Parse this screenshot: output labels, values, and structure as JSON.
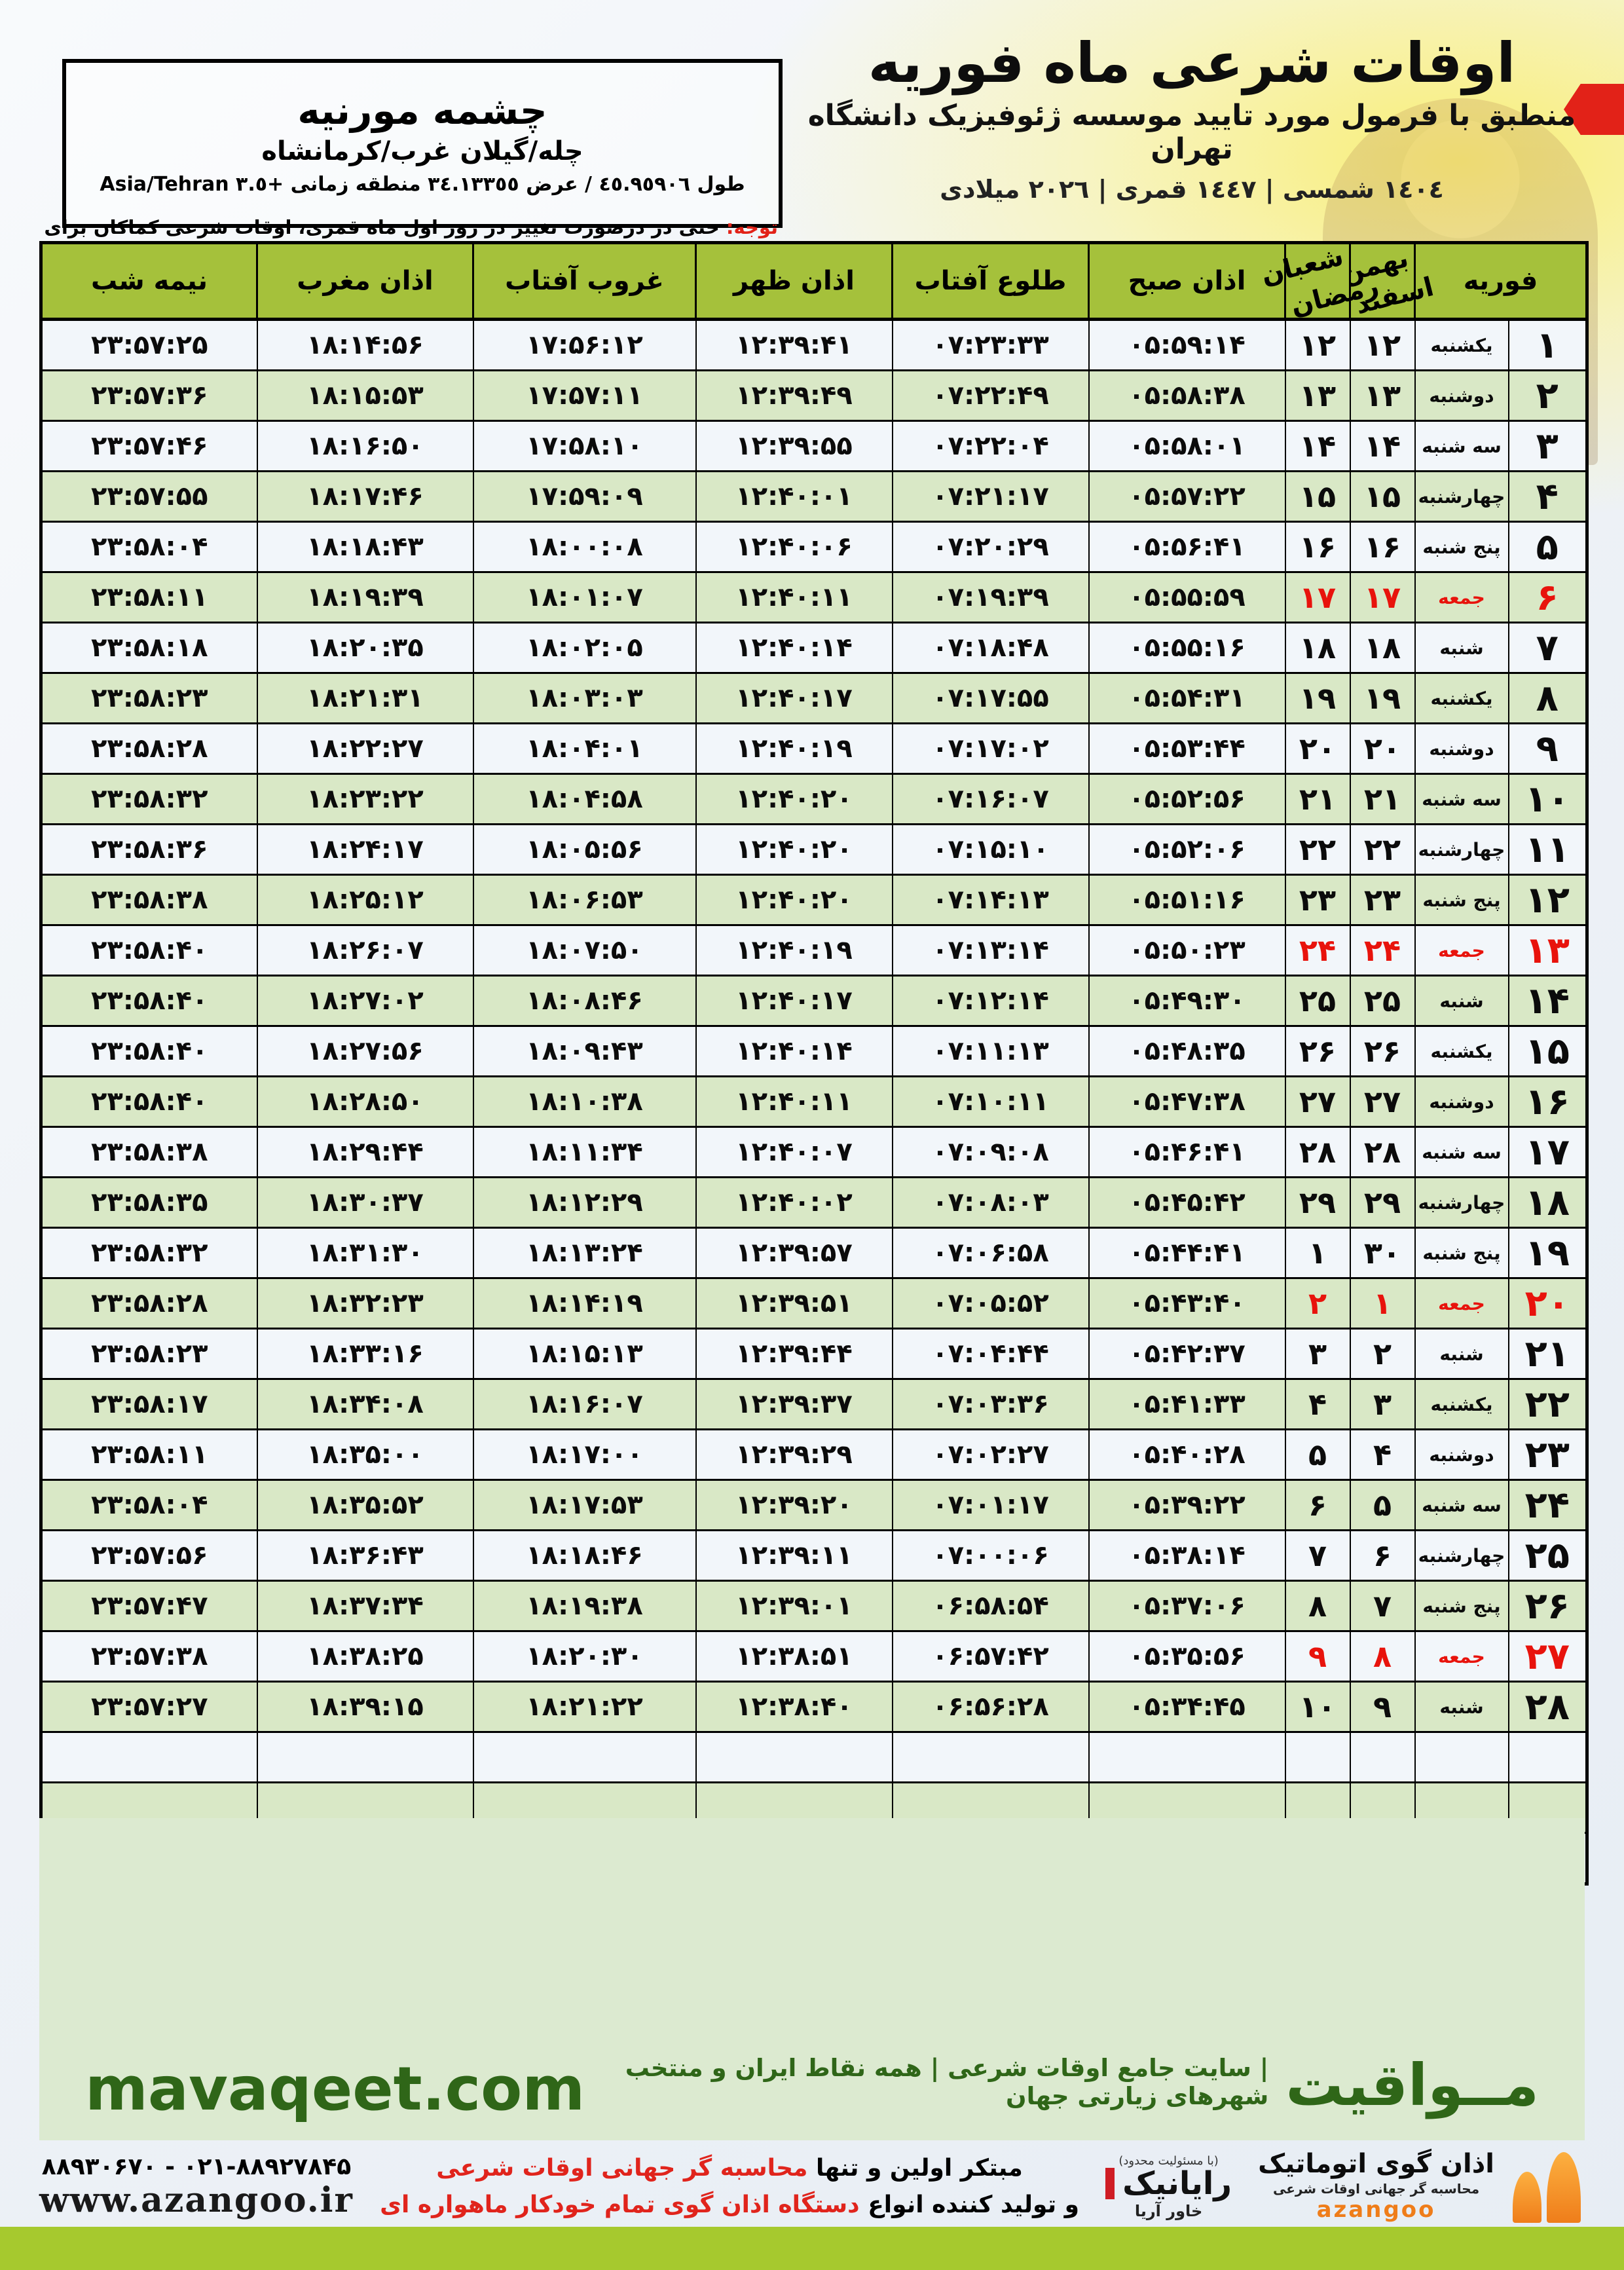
{
  "header": {
    "title": "اوقات شرعی ماه فوریه",
    "subtitle": "منطبق با فرمول مورد تایید موسسه ژئوفیزیک دانشگاه تهران",
    "years": "١٤٠٤ شمسی | ١٤٤٧ قمری | ٢٠٢٦ میلادی"
  },
  "location": {
    "name": "چشمه مورنیه",
    "region": "چله/گیلان غرب/کرمانشاه",
    "coords": "طول ٤٥.٩٥٩٠٦ / عرض ٣٤.١٣٣٥٥ منطقه زمانی +٣.٥ Asia/Tehran"
  },
  "note": {
    "label": "توجه:",
    "text": "حتی در درصورت تغییر در روز اول ماه قمری، اوقات شرعی کماکان برای روزهای شمسی و میلادی معتبر است."
  },
  "table": {
    "headers": {
      "february": "فوریه",
      "bahman": "بهمن",
      "esfand": "اسفند",
      "shaban": "شعبان",
      "ramadan": "رمضان",
      "fajr": "اذان صبح",
      "sunrise": "طلوع آفتاب",
      "dhuhr": "اذان ظهر",
      "sunset": "غروب آفتاب",
      "maghrib": "اذان مغرب",
      "midnight": "نیمه شب"
    },
    "empty_rows": 3,
    "rows": [
      {
        "day": "۱",
        "weekday": "یکشنبه",
        "jalali": "۱۲",
        "hijri": "۱۲",
        "fajr": "۰۵:۵۹:۱۴",
        "sunrise": "۰۷:۲۳:۳۳",
        "dhuhr": "۱۲:۳۹:۴۱",
        "sunset": "۱۷:۵۶:۱۲",
        "maghrib": "۱۸:۱۴:۵۶",
        "midnight": "۲۳:۵۷:۲۵",
        "friday": false
      },
      {
        "day": "۲",
        "weekday": "دوشنبه",
        "jalali": "۱۳",
        "hijri": "۱۳",
        "fajr": "۰۵:۵۸:۳۸",
        "sunrise": "۰۷:۲۲:۴۹",
        "dhuhr": "۱۲:۳۹:۴۹",
        "sunset": "۱۷:۵۷:۱۱",
        "maghrib": "۱۸:۱۵:۵۳",
        "midnight": "۲۳:۵۷:۳۶",
        "friday": false
      },
      {
        "day": "۳",
        "weekday": "سه شنبه",
        "jalali": "۱۴",
        "hijri": "۱۴",
        "fajr": "۰۵:۵۸:۰۱",
        "sunrise": "۰۷:۲۲:۰۴",
        "dhuhr": "۱۲:۳۹:۵۵",
        "sunset": "۱۷:۵۸:۱۰",
        "maghrib": "۱۸:۱۶:۵۰",
        "midnight": "۲۳:۵۷:۴۶",
        "friday": false
      },
      {
        "day": "۴",
        "weekday": "چهارشنبه",
        "jalali": "۱۵",
        "hijri": "۱۵",
        "fajr": "۰۵:۵۷:۲۲",
        "sunrise": "۰۷:۲۱:۱۷",
        "dhuhr": "۱۲:۴۰:۰۱",
        "sunset": "۱۷:۵۹:۰۹",
        "maghrib": "۱۸:۱۷:۴۶",
        "midnight": "۲۳:۵۷:۵۵",
        "friday": false
      },
      {
        "day": "۵",
        "weekday": "پنج شنبه",
        "jalali": "۱۶",
        "hijri": "۱۶",
        "fajr": "۰۵:۵۶:۴۱",
        "sunrise": "۰۷:۲۰:۲۹",
        "dhuhr": "۱۲:۴۰:۰۶",
        "sunset": "۱۸:۰۰:۰۸",
        "maghrib": "۱۸:۱۸:۴۳",
        "midnight": "۲۳:۵۸:۰۴",
        "friday": false
      },
      {
        "day": "۶",
        "weekday": "جمعه",
        "jalali": "۱۷",
        "hijri": "۱۷",
        "fajr": "۰۵:۵۵:۵۹",
        "sunrise": "۰۷:۱۹:۳۹",
        "dhuhr": "۱۲:۴۰:۱۱",
        "sunset": "۱۸:۰۱:۰۷",
        "maghrib": "۱۸:۱۹:۳۹",
        "midnight": "۲۳:۵۸:۱۱",
        "friday": true
      },
      {
        "day": "۷",
        "weekday": "شنبه",
        "jalali": "۱۸",
        "hijri": "۱۸",
        "fajr": "۰۵:۵۵:۱۶",
        "sunrise": "۰۷:۱۸:۴۸",
        "dhuhr": "۱۲:۴۰:۱۴",
        "sunset": "۱۸:۰۲:۰۵",
        "maghrib": "۱۸:۲۰:۳۵",
        "midnight": "۲۳:۵۸:۱۸",
        "friday": false
      },
      {
        "day": "۸",
        "weekday": "یکشنبه",
        "jalali": "۱۹",
        "hijri": "۱۹",
        "fajr": "۰۵:۵۴:۳۱",
        "sunrise": "۰۷:۱۷:۵۵",
        "dhuhr": "۱۲:۴۰:۱۷",
        "sunset": "۱۸:۰۳:۰۳",
        "maghrib": "۱۸:۲۱:۳۱",
        "midnight": "۲۳:۵۸:۲۳",
        "friday": false
      },
      {
        "day": "۹",
        "weekday": "دوشنبه",
        "jalali": "۲۰",
        "hijri": "۲۰",
        "fajr": "۰۵:۵۳:۴۴",
        "sunrise": "۰۷:۱۷:۰۲",
        "dhuhr": "۱۲:۴۰:۱۹",
        "sunset": "۱۸:۰۴:۰۱",
        "maghrib": "۱۸:۲۲:۲۷",
        "midnight": "۲۳:۵۸:۲۸",
        "friday": false
      },
      {
        "day": "۱۰",
        "weekday": "سه شنبه",
        "jalali": "۲۱",
        "hijri": "۲۱",
        "fajr": "۰۵:۵۲:۵۶",
        "sunrise": "۰۷:۱۶:۰۷",
        "dhuhr": "۱۲:۴۰:۲۰",
        "sunset": "۱۸:۰۴:۵۸",
        "maghrib": "۱۸:۲۳:۲۲",
        "midnight": "۲۳:۵۸:۳۲",
        "friday": false
      },
      {
        "day": "۱۱",
        "weekday": "چهارشنبه",
        "jalali": "۲۲",
        "hijri": "۲۲",
        "fajr": "۰۵:۵۲:۰۶",
        "sunrise": "۰۷:۱۵:۱۰",
        "dhuhr": "۱۲:۴۰:۲۰",
        "sunset": "۱۸:۰۵:۵۶",
        "maghrib": "۱۸:۲۴:۱۷",
        "midnight": "۲۳:۵۸:۳۶",
        "friday": false
      },
      {
        "day": "۱۲",
        "weekday": "پنج شنبه",
        "jalali": "۲۳",
        "hijri": "۲۳",
        "fajr": "۰۵:۵۱:۱۶",
        "sunrise": "۰۷:۱۴:۱۳",
        "dhuhr": "۱۲:۴۰:۲۰",
        "sunset": "۱۸:۰۶:۵۳",
        "maghrib": "۱۸:۲۵:۱۲",
        "midnight": "۲۳:۵۸:۳۸",
        "friday": false
      },
      {
        "day": "۱۳",
        "weekday": "جمعه",
        "jalali": "۲۴",
        "hijri": "۲۴",
        "fajr": "۰۵:۵۰:۲۳",
        "sunrise": "۰۷:۱۳:۱۴",
        "dhuhr": "۱۲:۴۰:۱۹",
        "sunset": "۱۸:۰۷:۵۰",
        "maghrib": "۱۸:۲۶:۰۷",
        "midnight": "۲۳:۵۸:۴۰",
        "friday": true
      },
      {
        "day": "۱۴",
        "weekday": "شنبه",
        "jalali": "۲۵",
        "hijri": "۲۵",
        "fajr": "۰۵:۴۹:۳۰",
        "sunrise": "۰۷:۱۲:۱۴",
        "dhuhr": "۱۲:۴۰:۱۷",
        "sunset": "۱۸:۰۸:۴۶",
        "maghrib": "۱۸:۲۷:۰۲",
        "midnight": "۲۳:۵۸:۴۰",
        "friday": false
      },
      {
        "day": "۱۵",
        "weekday": "یکشنبه",
        "jalali": "۲۶",
        "hijri": "۲۶",
        "fajr": "۰۵:۴۸:۳۵",
        "sunrise": "۰۷:۱۱:۱۳",
        "dhuhr": "۱۲:۴۰:۱۴",
        "sunset": "۱۸:۰۹:۴۳",
        "maghrib": "۱۸:۲۷:۵۶",
        "midnight": "۲۳:۵۸:۴۰",
        "friday": false
      },
      {
        "day": "۱۶",
        "weekday": "دوشنبه",
        "jalali": "۲۷",
        "hijri": "۲۷",
        "fajr": "۰۵:۴۷:۳۸",
        "sunrise": "۰۷:۱۰:۱۱",
        "dhuhr": "۱۲:۴۰:۱۱",
        "sunset": "۱۸:۱۰:۳۸",
        "maghrib": "۱۸:۲۸:۵۰",
        "midnight": "۲۳:۵۸:۴۰",
        "friday": false
      },
      {
        "day": "۱۷",
        "weekday": "سه شنبه",
        "jalali": "۲۸",
        "hijri": "۲۸",
        "fajr": "۰۵:۴۶:۴۱",
        "sunrise": "۰۷:۰۹:۰۸",
        "dhuhr": "۱۲:۴۰:۰۷",
        "sunset": "۱۸:۱۱:۳۴",
        "maghrib": "۱۸:۲۹:۴۴",
        "midnight": "۲۳:۵۸:۳۸",
        "friday": false
      },
      {
        "day": "۱۸",
        "weekday": "چهارشنبه",
        "jalali": "۲۹",
        "hijri": "۲۹",
        "fajr": "۰۵:۴۵:۴۲",
        "sunrise": "۰۷:۰۸:۰۳",
        "dhuhr": "۱۲:۴۰:۰۲",
        "sunset": "۱۸:۱۲:۲۹",
        "maghrib": "۱۸:۳۰:۳۷",
        "midnight": "۲۳:۵۸:۳۵",
        "friday": false
      },
      {
        "day": "۱۹",
        "weekday": "پنج شنبه",
        "jalali": "۳۰",
        "hijri": "۱",
        "fajr": "۰۵:۴۴:۴۱",
        "sunrise": "۰۷:۰۶:۵۸",
        "dhuhr": "۱۲:۳۹:۵۷",
        "sunset": "۱۸:۱۳:۲۴",
        "maghrib": "۱۸:۳۱:۳۰",
        "midnight": "۲۳:۵۸:۳۲",
        "friday": false
      },
      {
        "day": "۲۰",
        "weekday": "جمعه",
        "jalali": "۱",
        "hijri": "۲",
        "fajr": "۰۵:۴۳:۴۰",
        "sunrise": "۰۷:۰۵:۵۲",
        "dhuhr": "۱۲:۳۹:۵۱",
        "sunset": "۱۸:۱۴:۱۹",
        "maghrib": "۱۸:۳۲:۲۳",
        "midnight": "۲۳:۵۸:۲۸",
        "friday": true
      },
      {
        "day": "۲۱",
        "weekday": "شنبه",
        "jalali": "۲",
        "hijri": "۳",
        "fajr": "۰۵:۴۲:۳۷",
        "sunrise": "۰۷:۰۴:۴۴",
        "dhuhr": "۱۲:۳۹:۴۴",
        "sunset": "۱۸:۱۵:۱۳",
        "maghrib": "۱۸:۳۳:۱۶",
        "midnight": "۲۳:۵۸:۲۳",
        "friday": false
      },
      {
        "day": "۲۲",
        "weekday": "یکشنبه",
        "jalali": "۳",
        "hijri": "۴",
        "fajr": "۰۵:۴۱:۳۳",
        "sunrise": "۰۷:۰۳:۳۶",
        "dhuhr": "۱۲:۳۹:۳۷",
        "sunset": "۱۸:۱۶:۰۷",
        "maghrib": "۱۸:۳۴:۰۸",
        "midnight": "۲۳:۵۸:۱۷",
        "friday": false
      },
      {
        "day": "۲۳",
        "weekday": "دوشنبه",
        "jalali": "۴",
        "hijri": "۵",
        "fajr": "۰۵:۴۰:۲۸",
        "sunrise": "۰۷:۰۲:۲۷",
        "dhuhr": "۱۲:۳۹:۲۹",
        "sunset": "۱۸:۱۷:۰۰",
        "maghrib": "۱۸:۳۵:۰۰",
        "midnight": "۲۳:۵۸:۱۱",
        "friday": false
      },
      {
        "day": "۲۴",
        "weekday": "سه شنبه",
        "jalali": "۵",
        "hijri": "۶",
        "fajr": "۰۵:۳۹:۲۲",
        "sunrise": "۰۷:۰۱:۱۷",
        "dhuhr": "۱۲:۳۹:۲۰",
        "sunset": "۱۸:۱۷:۵۳",
        "maghrib": "۱۸:۳۵:۵۲",
        "midnight": "۲۳:۵۸:۰۴",
        "friday": false
      },
      {
        "day": "۲۵",
        "weekday": "چهارشنبه",
        "jalali": "۶",
        "hijri": "۷",
        "fajr": "۰۵:۳۸:۱۴",
        "sunrise": "۰۷:۰۰:۰۶",
        "dhuhr": "۱۲:۳۹:۱۱",
        "sunset": "۱۸:۱۸:۴۶",
        "maghrib": "۱۸:۳۶:۴۳",
        "midnight": "۲۳:۵۷:۵۶",
        "friday": false
      },
      {
        "day": "۲۶",
        "weekday": "پنج شنبه",
        "jalali": "۷",
        "hijri": "۸",
        "fajr": "۰۵:۳۷:۰۶",
        "sunrise": "۰۶:۵۸:۵۴",
        "dhuhr": "۱۲:۳۹:۰۱",
        "sunset": "۱۸:۱۹:۳۸",
        "maghrib": "۱۸:۳۷:۳۴",
        "midnight": "۲۳:۵۷:۴۷",
        "friday": false
      },
      {
        "day": "۲۷",
        "weekday": "جمعه",
        "jalali": "۸",
        "hijri": "۹",
        "fajr": "۰۵:۳۵:۵۶",
        "sunrise": "۰۶:۵۷:۴۲",
        "dhuhr": "۱۲:۳۸:۵۱",
        "sunset": "۱۸:۲۰:۳۰",
        "maghrib": "۱۸:۳۸:۲۵",
        "midnight": "۲۳:۵۷:۳۸",
        "friday": true
      },
      {
        "day": "۲۸",
        "weekday": "شنبه",
        "jalali": "۹",
        "hijri": "۱۰",
        "fajr": "۰۵:۳۴:۴۵",
        "sunrise": "۰۶:۵۶:۲۸",
        "dhuhr": "۱۲:۳۸:۴۰",
        "sunset": "۱۸:۲۱:۲۲",
        "maghrib": "۱۸:۳۹:۱۵",
        "midnight": "۲۳:۵۷:۲۷",
        "friday": false
      }
    ]
  },
  "mavaqeet": {
    "brand": "مــواقیت",
    "tagline": "| سایت جامع اوقات شرعی | همه نقاط ایران و منتخب شهرهای زیارتی جهان",
    "url": "mavaqeet.com"
  },
  "bottom": {
    "phone": "۰۲۱-۸۸۹۲۷۸۴۵ - ۸۸۹۳۰۶۷۰",
    "website": "www.azangoo.ir",
    "line1_black": "مبتکر اولین و تنها",
    "line1_red": "محاسبه گر جهانی اوقات شرعی",
    "line2_black": "و تولید کننده انواع",
    "line2_red": "دستگاه اذان گوی تمام خودکار ماهواره ای",
    "rayanik_note": "(با مسئولیت محدود)",
    "rayanik_brand": "رایانیک",
    "rayanik_sub": "خاور آریا",
    "azangoo_line1": "اذان گوی اتوماتیک",
    "azangoo_line2": "محاسبه گر جهانی اوقات شرعی",
    "azangoo_latin": "azangoo"
  }
}
